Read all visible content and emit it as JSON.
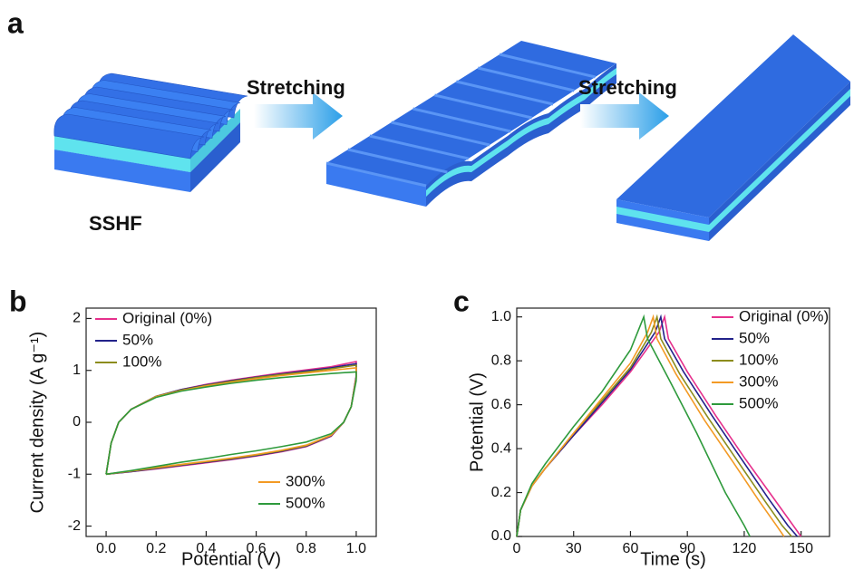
{
  "panel_a": {
    "label": "a",
    "arrows": [
      "Stretching",
      "Stretching"
    ],
    "sample": "SSHF"
  },
  "chart_data": [
    {
      "type": "line",
      "panel": "b",
      "xlabel": "Potential (V)",
      "ylabel": "Current density (A g⁻¹)",
      "xlim": [
        -0.08,
        1.08
      ],
      "ylim": [
        -2.2,
        2.2
      ],
      "xticks": [
        {
          "value": 0,
          "label": "0.0"
        },
        0.2,
        0.4,
        0.6,
        0.8,
        {
          "value": 1,
          "label": "1.0"
        }
      ],
      "yticks": [
        -2,
        -1,
        0,
        1,
        2
      ],
      "series": [
        {
          "name": "Original (0%)",
          "color": "#e6308c",
          "legend": "upper left",
          "x": [
            0,
            0.02,
            0.05,
            0.1,
            0.2,
            0.3,
            0.4,
            0.5,
            0.6,
            0.7,
            0.8,
            0.9,
            1.0,
            1.0,
            0.98,
            0.95,
            0.9,
            0.8,
            0.7,
            0.6,
            0.5,
            0.4,
            0.3,
            0.2,
            0.1,
            0
          ],
          "values": [
            -1.0,
            -0.4,
            0.0,
            0.25,
            0.5,
            0.63,
            0.73,
            0.81,
            0.88,
            0.95,
            1.01,
            1.07,
            1.17,
            0.9,
            0.3,
            0.0,
            -0.27,
            -0.47,
            -0.57,
            -0.65,
            -0.72,
            -0.78,
            -0.84,
            -0.9,
            -0.95,
            -1.0
          ]
        },
        {
          "name": "50%",
          "color": "#22228a",
          "legend": "upper left",
          "x": [
            0,
            0.02,
            0.05,
            0.1,
            0.2,
            0.3,
            0.4,
            0.5,
            0.6,
            0.7,
            0.8,
            0.9,
            1.0,
            1.0,
            0.98,
            0.95,
            0.9,
            0.8,
            0.7,
            0.6,
            0.5,
            0.4,
            0.3,
            0.2,
            0.1,
            0
          ],
          "values": [
            -1.0,
            -0.4,
            0.0,
            0.25,
            0.5,
            0.63,
            0.72,
            0.8,
            0.87,
            0.93,
            0.99,
            1.05,
            1.13,
            0.88,
            0.3,
            0.0,
            -0.26,
            -0.46,
            -0.56,
            -0.64,
            -0.71,
            -0.77,
            -0.83,
            -0.89,
            -0.95,
            -1.0
          ]
        },
        {
          "name": "100%",
          "color": "#8c8c1c",
          "legend": "upper left",
          "x": [
            0,
            0.02,
            0.05,
            0.1,
            0.2,
            0.3,
            0.4,
            0.5,
            0.6,
            0.7,
            0.8,
            0.9,
            1.0,
            1.0,
            0.98,
            0.95,
            0.9,
            0.8,
            0.7,
            0.6,
            0.5,
            0.4,
            0.3,
            0.2,
            0.1,
            0
          ],
          "values": [
            -1.0,
            -0.4,
            0.0,
            0.25,
            0.5,
            0.62,
            0.71,
            0.79,
            0.86,
            0.92,
            0.97,
            1.03,
            1.1,
            0.86,
            0.3,
            0.0,
            -0.25,
            -0.45,
            -0.55,
            -0.63,
            -0.7,
            -0.76,
            -0.82,
            -0.88,
            -0.94,
            -1.0
          ]
        },
        {
          "name": "300%",
          "color": "#f39a24",
          "legend": "lower right",
          "x": [
            0,
            0.02,
            0.05,
            0.1,
            0.2,
            0.3,
            0.4,
            0.5,
            0.6,
            0.7,
            0.8,
            0.9,
            1.0,
            1.0,
            0.98,
            0.95,
            0.9,
            0.8,
            0.7,
            0.6,
            0.5,
            0.4,
            0.3,
            0.2,
            0.1,
            0
          ],
          "values": [
            -1.0,
            -0.4,
            0.0,
            0.25,
            0.49,
            0.61,
            0.7,
            0.77,
            0.84,
            0.9,
            0.95,
            1.0,
            1.05,
            0.84,
            0.3,
            0.0,
            -0.25,
            -0.44,
            -0.54,
            -0.62,
            -0.69,
            -0.75,
            -0.81,
            -0.87,
            -0.94,
            -1.0
          ]
        },
        {
          "name": "500%",
          "color": "#2e9a3c",
          "legend": "lower right",
          "x": [
            0,
            0.02,
            0.05,
            0.1,
            0.2,
            0.3,
            0.4,
            0.5,
            0.6,
            0.7,
            0.8,
            0.9,
            1.0,
            1.0,
            0.98,
            0.95,
            0.9,
            0.8,
            0.7,
            0.6,
            0.5,
            0.4,
            0.3,
            0.2,
            0.1,
            0
          ],
          "values": [
            -1.0,
            -0.4,
            0.0,
            0.25,
            0.48,
            0.6,
            0.68,
            0.75,
            0.81,
            0.86,
            0.9,
            0.94,
            0.97,
            0.8,
            0.3,
            0.0,
            -0.22,
            -0.38,
            -0.47,
            -0.55,
            -0.62,
            -0.7,
            -0.77,
            -0.85,
            -0.93,
            -1.0
          ]
        }
      ]
    },
    {
      "type": "line",
      "panel": "c",
      "xlabel": "Time (s)",
      "ylabel": "Potential (V)",
      "xlim": [
        0,
        165
      ],
      "ylim": [
        0,
        1.04
      ],
      "xticks": [
        0,
        30,
        60,
        90,
        120,
        150
      ],
      "yticks": [
        {
          "value": 0,
          "label": "0.0"
        },
        0.2,
        0.4,
        0.6,
        0.8,
        {
          "value": 1,
          "label": "1.0"
        }
      ],
      "series": [
        {
          "name": "Original (0%)",
          "color": "#e6308c",
          "legend": "upper right",
          "x": [
            0,
            2,
            8,
            15,
            30,
            45,
            60,
            75,
            78,
            80,
            90,
            105,
            120,
            135,
            145,
            150
          ],
          "values": [
            0,
            0.12,
            0.23,
            0.31,
            0.46,
            0.6,
            0.75,
            0.93,
            1.0,
            0.9,
            0.75,
            0.55,
            0.36,
            0.18,
            0.06,
            0
          ]
        },
        {
          "name": "50%",
          "color": "#22228a",
          "legend": "upper right",
          "x": [
            0,
            2,
            8,
            15,
            30,
            45,
            60,
            73,
            76,
            78,
            88,
            103,
            118,
            133,
            143,
            148
          ],
          "values": [
            0,
            0.12,
            0.23,
            0.31,
            0.46,
            0.61,
            0.76,
            0.93,
            1.0,
            0.9,
            0.75,
            0.55,
            0.36,
            0.17,
            0.05,
            0
          ]
        },
        {
          "name": "100%",
          "color": "#8c8c1c",
          "legend": "upper right",
          "x": [
            0,
            2,
            8,
            15,
            30,
            45,
            60,
            71,
            74,
            76,
            86,
            101,
            116,
            131,
            140,
            145
          ],
          "values": [
            0,
            0.12,
            0.23,
            0.31,
            0.47,
            0.62,
            0.77,
            0.93,
            1.0,
            0.9,
            0.74,
            0.54,
            0.35,
            0.16,
            0.05,
            0
          ]
        },
        {
          "name": "300%",
          "color": "#f39a24",
          "legend": "upper right",
          "x": [
            0,
            2,
            8,
            15,
            30,
            45,
            60,
            69,
            72,
            74,
            84,
            99,
            114,
            128,
            137,
            141
          ],
          "values": [
            0,
            0.12,
            0.23,
            0.31,
            0.47,
            0.63,
            0.79,
            0.93,
            1.0,
            0.9,
            0.74,
            0.53,
            0.34,
            0.16,
            0.05,
            0
          ]
        },
        {
          "name": "500%",
          "color": "#2e9a3c",
          "legend": "upper right",
          "x": [
            0,
            2,
            8,
            15,
            30,
            45,
            60,
            67,
            69,
            80,
            95,
            110,
            120,
            123
          ],
          "values": [
            0,
            0.12,
            0.24,
            0.33,
            0.5,
            0.66,
            0.85,
            1.0,
            0.9,
            0.72,
            0.47,
            0.2,
            0.05,
            0
          ]
        }
      ]
    }
  ]
}
